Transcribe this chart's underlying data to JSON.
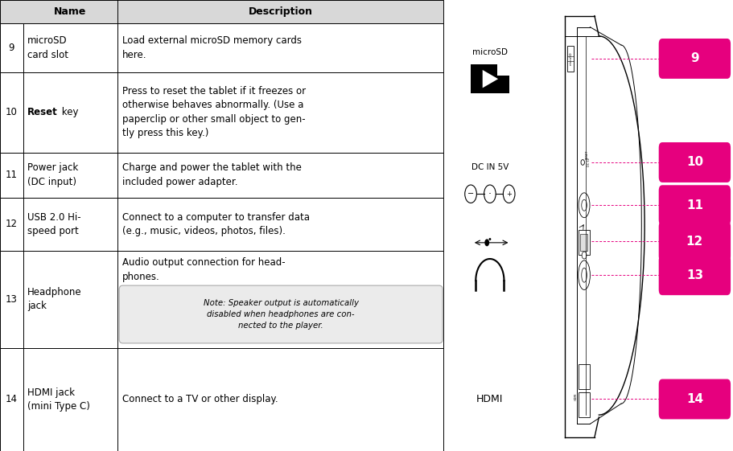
{
  "bg_color": "#ffffff",
  "table_line_color": "#000000",
  "header_bg": "#d8d8d8",
  "pink_color": "#e6007e",
  "fig_width": 9.11,
  "fig_height": 5.61,
  "rows": [
    {
      "num": "9",
      "name": "microSD\ncard slot",
      "bold_name": false,
      "desc": "Load external microSD memory cards\nhere.",
      "note": null
    },
    {
      "num": "10",
      "name": "Reset key",
      "bold_name": true,
      "bold_word": "Reset",
      "desc": "Press to reset the tablet if it freezes or\notherwise behaves abnormally. (Use a\npaperclip or other small object to gen-\ntly press this key.)",
      "note": null
    },
    {
      "num": "11",
      "name": "Power jack\n(DC input)",
      "bold_name": false,
      "desc": "Charge and power the tablet with the\nincluded power adapter.",
      "note": null
    },
    {
      "num": "12",
      "name": "USB 2.0 Hi-\nspeed port",
      "bold_name": false,
      "desc": "Connect to a computer to transfer data\n(e.g., music, videos, photos, files).",
      "note": null
    },
    {
      "num": "13",
      "name": "Headphone\njack",
      "bold_name": false,
      "desc": "Audio output connection for head-\nphones.",
      "note": "Note: Speaker output is automatically\ndisabled when headphones are con-\nnected to the player."
    },
    {
      "num": "14",
      "name": "HDMI jack\n(mini Type C)",
      "bold_name": false,
      "desc": "Connect to a TV or other display.",
      "note": null
    }
  ],
  "port_y": {
    "9": 0.87,
    "10": 0.64,
    "11": 0.545,
    "12": 0.465,
    "13": 0.39,
    "14": 0.115
  },
  "icon_labels": {
    "microSD_text": "microSD",
    "dc_text": "DC IN 5V",
    "usb_sym": "•←→",
    "hdmi_text": "HDMI"
  }
}
